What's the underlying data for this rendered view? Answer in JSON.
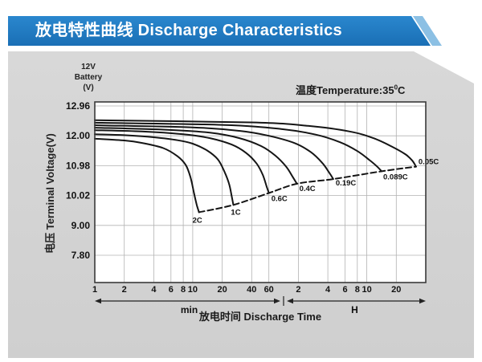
{
  "header": {
    "title": "放电特性曲线 Discharge Characteristics"
  },
  "panel": {
    "axis_unit": {
      "line1": "12V",
      "line2": "Battery",
      "line3": "(V)"
    },
    "temperature": {
      "prefix": "温度Temperature:35",
      "sup": "0",
      "suffix": "C"
    },
    "y_axis_title": "电压 Terminal Voltage(V)",
    "x_axis_title": "放电时间 Discharge Time"
  },
  "chart_data": {
    "type": "line",
    "title": "放电特性曲线 Discharge Characteristics",
    "temperature": "35°C",
    "x_axis": {
      "scale": "log",
      "unit": "minutes",
      "min": 1,
      "max": 2400,
      "minute_region_label": "min",
      "hour_region_label": "H",
      "ticks": [
        {
          "t": 1,
          "label": "1"
        },
        {
          "t": 2,
          "label": "2"
        },
        {
          "t": 4,
          "label": "4"
        },
        {
          "t": 6,
          "label": "6"
        },
        {
          "t": 8,
          "label": "8"
        },
        {
          "t": 10,
          "label": "10"
        },
        {
          "t": 20,
          "label": "20"
        },
        {
          "t": 40,
          "label": "40"
        },
        {
          "t": 60,
          "label": "60"
        },
        {
          "t": 120,
          "label": "2"
        },
        {
          "t": 240,
          "label": "4"
        },
        {
          "t": 360,
          "label": "6"
        },
        {
          "t": 480,
          "label": "8"
        },
        {
          "t": 600,
          "label": "10"
        },
        {
          "t": 1200,
          "label": "20"
        }
      ]
    },
    "y_axis": {
      "label": "电压 Terminal Voltage(V)",
      "ylim": [
        7.8,
        12.96
      ],
      "ticks": [
        {
          "v": 12.96,
          "label": "12.96"
        },
        {
          "v": 12.0,
          "label": "12.00"
        },
        {
          "v": 10.98,
          "label": "10.98"
        },
        {
          "v": 10.02,
          "label": "10.02"
        },
        {
          "v": 9.0,
          "label": "9.00"
        },
        {
          "v": 7.8,
          "label": "7.80"
        }
      ]
    },
    "series": [
      {
        "name": "2C",
        "label_anchor": "middle",
        "label_offset": [
          -2,
          13
        ],
        "points": [
          [
            1,
            11.9
          ],
          [
            2,
            11.84
          ],
          [
            3,
            11.76
          ],
          [
            5,
            11.58
          ],
          [
            7,
            11.3
          ],
          [
            8.5,
            11.0
          ],
          [
            9.5,
            10.6
          ],
          [
            10.3,
            10.1
          ],
          [
            11,
            9.7
          ],
          [
            11.6,
            9.45
          ]
        ]
      },
      {
        "name": "1C",
        "label_anchor": "middle",
        "label_offset": [
          3,
          12
        ],
        "points": [
          [
            1,
            12.05
          ],
          [
            2,
            12.02
          ],
          [
            4,
            11.95
          ],
          [
            7,
            11.85
          ],
          [
            10,
            11.73
          ],
          [
            14,
            11.5
          ],
          [
            18,
            11.2
          ],
          [
            21,
            10.8
          ],
          [
            23.5,
            10.4
          ],
          [
            25,
            10.0
          ],
          [
            26,
            9.7
          ]
        ]
      },
      {
        "name": "0.6C",
        "label_anchor": "start",
        "label_offset": [
          3,
          10
        ],
        "points": [
          [
            1,
            12.18
          ],
          [
            3,
            12.14
          ],
          [
            8,
            12.05
          ],
          [
            15,
            11.92
          ],
          [
            25,
            11.7
          ],
          [
            35,
            11.42
          ],
          [
            45,
            11.05
          ],
          [
            52,
            10.68
          ],
          [
            57,
            10.3
          ],
          [
            60,
            10.1
          ]
        ]
      },
      {
        "name": "0.4C",
        "label_anchor": "start",
        "label_offset": [
          3,
          9
        ],
        "points": [
          [
            1,
            12.26
          ],
          [
            5,
            12.2
          ],
          [
            15,
            12.1
          ],
          [
            30,
            11.92
          ],
          [
            50,
            11.65
          ],
          [
            70,
            11.32
          ],
          [
            90,
            10.95
          ],
          [
            105,
            10.62
          ],
          [
            116,
            10.4
          ]
        ]
      },
      {
        "name": "0.19C",
        "label_anchor": "start",
        "label_offset": [
          3,
          8
        ],
        "points": [
          [
            1,
            12.34
          ],
          [
            10,
            12.27
          ],
          [
            30,
            12.16
          ],
          [
            60,
            12.0
          ],
          [
            110,
            11.75
          ],
          [
            160,
            11.45
          ],
          [
            210,
            11.08
          ],
          [
            245,
            10.78
          ],
          [
            273,
            10.55
          ]
        ]
      },
      {
        "name": "0.089C",
        "label_anchor": "start",
        "label_offset": [
          2,
          10
        ],
        "points": [
          [
            1,
            12.42
          ],
          [
            20,
            12.35
          ],
          [
            80,
            12.22
          ],
          [
            180,
            12.04
          ],
          [
            320,
            11.78
          ],
          [
            480,
            11.48
          ],
          [
            640,
            11.17
          ],
          [
            760,
            10.96
          ],
          [
            849,
            10.8
          ]
        ]
      },
      {
        "name": "0.05C",
        "label_anchor": "start",
        "label_offset": [
          3,
          -3
        ],
        "points": [
          [
            1,
            12.5
          ],
          [
            40,
            12.43
          ],
          [
            150,
            12.32
          ],
          [
            400,
            12.14
          ],
          [
            700,
            11.92
          ],
          [
            1100,
            11.62
          ],
          [
            1500,
            11.36
          ],
          [
            1750,
            11.15
          ],
          [
            1910,
            10.95
          ]
        ]
      }
    ],
    "cutoff_line": {
      "style": "dashed",
      "points": [
        [
          11.6,
          9.45
        ],
        [
          26,
          9.7
        ],
        [
          60,
          10.1
        ],
        [
          116,
          10.4
        ],
        [
          273,
          10.55
        ],
        [
          849,
          10.8
        ],
        [
          1910,
          10.95
        ]
      ]
    }
  }
}
